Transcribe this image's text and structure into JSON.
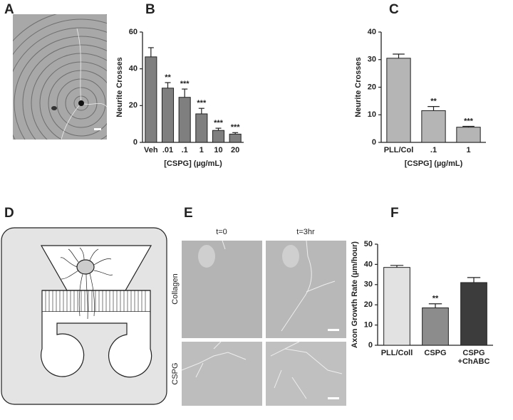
{
  "panel_letters": [
    "A",
    "B",
    "C",
    "D",
    "E",
    "F"
  ],
  "panel_e": {
    "columns": [
      "t=0",
      "t=3hr"
    ],
    "rows": [
      "Collagen",
      "CSPG"
    ]
  },
  "chart_data": [
    {
      "type": "bar",
      "categories": [
        "Veh",
        ".01",
        ".1",
        "1",
        "10",
        "20"
      ],
      "values": [
        46.5,
        29.5,
        24.5,
        15.5,
        6.5,
        4.5
      ],
      "errors": [
        5,
        3,
        4.5,
        3,
        1.2,
        0.8
      ],
      "significance": [
        null,
        "**",
        "***",
        "***",
        "***",
        "***"
      ],
      "color": "#7f7f7f",
      "ylabel": "Neurite Crosses",
      "xlabel": "[CSPG] (µg/mL)",
      "ylim": [
        0,
        60
      ],
      "yticks": [
        0,
        20,
        40,
        60
      ]
    },
    {
      "type": "bar",
      "categories": [
        "PLL/Col",
        ".1",
        "1"
      ],
      "values": [
        30.5,
        11.5,
        5.5
      ],
      "errors": [
        1.5,
        1.5,
        0.3
      ],
      "significance": [
        null,
        "**",
        "***"
      ],
      "color": "#b5b5b5",
      "ylabel": "Neurite Crosses",
      "xlabel": "[CSPG] (µg/mL)",
      "ylim": [
        0,
        40
      ],
      "yticks": [
        0,
        10,
        20,
        30,
        40
      ]
    },
    {
      "type": "bar",
      "categories": [
        "PLL/Coll",
        "CSPG",
        "CSPG +ChABC"
      ],
      "values": [
        38.5,
        18.5,
        31
      ],
      "errors": [
        1,
        2,
        2.5
      ],
      "significance": [
        null,
        "**",
        null
      ],
      "colors": [
        "#e2e2e2",
        "#8c8c8c",
        "#3c3c3c"
      ],
      "ylabel": "Axon Growth Rate (µm/hour)",
      "ylim": [
        0,
        50
      ],
      "yticks": [
        0,
        10,
        20,
        30,
        40,
        50
      ]
    }
  ]
}
